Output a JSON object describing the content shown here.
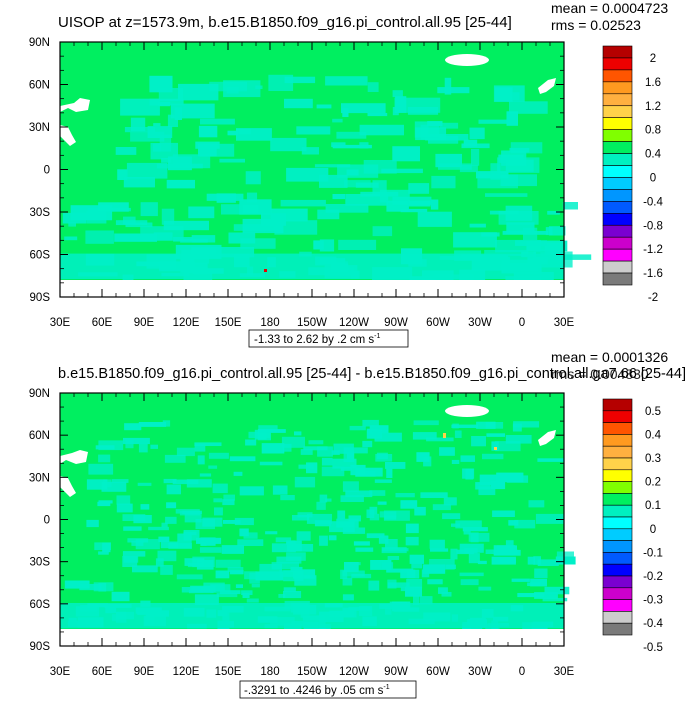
{
  "chart_data": [
    {
      "type": "heatmap",
      "title": "UISOP at z=1573.9m, b.e15.B1850.f09_g16.pi_control.all.95 [25-44]",
      "stats": [
        "mean = 0.0004723",
        "rms = 0.02523"
      ],
      "x_tick_labels": [
        "30E",
        "60E",
        "90E",
        "120E",
        "150E",
        "180",
        "150W",
        "120W",
        "90W",
        "60W",
        "30W",
        "0",
        "30E"
      ],
      "y_tick_labels": [
        "90N",
        "60N",
        "30N",
        "0",
        "30S",
        "60S",
        "90S"
      ],
      "xlim": [
        30,
        390
      ],
      "ylim": [
        -90,
        90
      ],
      "contour_info": "-1.33 to 2.62 by .2 cm s",
      "contour_unit_sup": "-1",
      "colorbar_labels": [
        "2",
        "1.6",
        "1.2",
        "0.8",
        "0.4",
        "0",
        "-0.4",
        "-0.8",
        "-1.2",
        "-1.6",
        "-2"
      ]
    },
    {
      "type": "heatmap",
      "title": "b.e15.B1850.f09_g16.pi_control.all.95 [25-44] - b.e15.B1850.f09_g16.pi_control.all.ga7.66 [25-44]",
      "stats": [
        "mean = 0.0001326",
        "rms = 0.004830"
      ],
      "x_tick_labels": [
        "30E",
        "60E",
        "90E",
        "120E",
        "150E",
        "180",
        "150W",
        "120W",
        "90W",
        "60W",
        "30W",
        "0",
        "30E"
      ],
      "y_tick_labels": [
        "90N",
        "60N",
        "30N",
        "0",
        "30S",
        "60S",
        "90S"
      ],
      "xlim": [
        30,
        390
      ],
      "ylim": [
        -90,
        90
      ],
      "contour_info": "-.3291 to .4246 by .05 cm s",
      "contour_unit_sup": "-1",
      "colorbar_labels": [
        "0.5",
        "0.4",
        "0.3",
        "0.2",
        "0.1",
        "0",
        "-0.1",
        "-0.2",
        "-0.3",
        "-0.4",
        "-0.5"
      ]
    }
  ],
  "colors": {
    "colorbar": [
      "#b50000",
      "#ee0000",
      "#ff5500",
      "#ff9a20",
      "#ffb040",
      "#ffd24a",
      "#ffff00",
      "#80ff00",
      "#00ef60",
      "#00f0c0",
      "#00ffff",
      "#00ccff",
      "#0096ff",
      "#005aff",
      "#0000ff",
      "#7a00d0",
      "#cc00cc",
      "#ff00ff",
      "#cccccc",
      "#7a7a7a"
    ],
    "ocean_base_top": "#00ef60",
    "ocean_base_bottom": "#00ef60",
    "cyan_patch": "#00f0c8"
  }
}
